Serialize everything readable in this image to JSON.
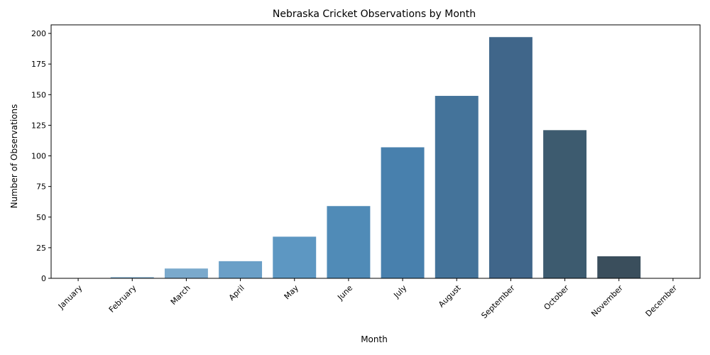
{
  "chart_data": {
    "type": "bar",
    "title": "Nebraska Cricket Observations by Month",
    "xlabel": "Month",
    "ylabel": "Number of Observations",
    "categories": [
      "January",
      "February",
      "March",
      "April",
      "May",
      "June",
      "July",
      "August",
      "September",
      "October",
      "November",
      "December"
    ],
    "values": [
      0,
      1,
      8,
      14,
      34,
      59,
      107,
      149,
      197,
      121,
      18,
      0
    ],
    "bar_colors": [
      "#8db4d3",
      "#86b0d1",
      "#7aa9cc",
      "#6a9fc7",
      "#5d97c2",
      "#508bb7",
      "#4880ad",
      "#44739a",
      "#40668a",
      "#3d5b6f",
      "#3a4e5c",
      "#354550"
    ],
    "ylim": [
      0,
      207
    ],
    "yticks": [
      0,
      25,
      50,
      75,
      100,
      125,
      150,
      175,
      200
    ],
    "grid": false,
    "legend": "none"
  }
}
